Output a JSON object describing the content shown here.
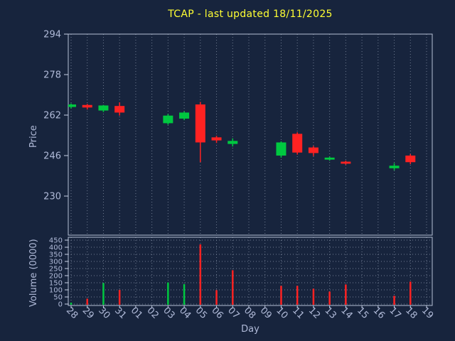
{
  "colors": {
    "background": "#17243d",
    "up": "#00c840",
    "down": "#ff2222",
    "grid": "#707c92",
    "axis": "#c8d2e6",
    "tick_text": "#b0bad8",
    "title_text": "#ffff33"
  },
  "chart_data": {
    "type": "candlestick",
    "title": "TCAP - last updated 18/11/2025",
    "xlabel": "Day",
    "legend": "none",
    "grid": "vertical-dotted",
    "price_axis": {
      "label": "Price",
      "ticks": [
        230,
        246,
        262,
        278,
        294
      ],
      "min": 214,
      "max": 294
    },
    "volume_axis": {
      "label": "Volume (0000)",
      "ticks": [
        0,
        50,
        100,
        150,
        200,
        250,
        300,
        350,
        400,
        450
      ],
      "min": 0,
      "max": 470
    },
    "days": [
      "28",
      "29",
      "30",
      "31",
      "01",
      "02",
      "03",
      "04",
      "05",
      "06",
      "07",
      "08",
      "09",
      "10",
      "11",
      "12",
      "13",
      "14",
      "15",
      "16",
      "17",
      "18",
      "19"
    ],
    "candles": [
      {
        "day": "28",
        "open": 265.2,
        "high": 266.6,
        "low": 264.6,
        "close": 266.2
      },
      {
        "day": "29",
        "open": 266.0,
        "high": 266.4,
        "low": 264.2,
        "close": 265.0
      },
      {
        "day": "30",
        "open": 263.8,
        "high": 266.0,
        "low": 263.2,
        "close": 265.8
      },
      {
        "day": "31",
        "open": 265.6,
        "high": 267.0,
        "low": 261.8,
        "close": 263.0
      },
      {
        "day": "03",
        "open": 258.8,
        "high": 262.4,
        "low": 258.2,
        "close": 261.8
      },
      {
        "day": "04",
        "open": 260.6,
        "high": 263.4,
        "low": 260.0,
        "close": 263.0
      },
      {
        "day": "05",
        "open": 266.2,
        "high": 267.2,
        "low": 243.4,
        "close": 251.2
      },
      {
        "day": "06",
        "open": 253.2,
        "high": 253.8,
        "low": 251.0,
        "close": 252.0
      },
      {
        "day": "07",
        "open": 250.6,
        "high": 252.8,
        "low": 249.6,
        "close": 251.8
      },
      {
        "day": "10",
        "open": 246.0,
        "high": 251.6,
        "low": 245.2,
        "close": 251.2
      },
      {
        "day": "11",
        "open": 254.6,
        "high": 255.2,
        "low": 246.4,
        "close": 247.2
      },
      {
        "day": "12",
        "open": 249.2,
        "high": 249.8,
        "low": 245.8,
        "close": 247.0
      },
      {
        "day": "13",
        "open": 244.4,
        "high": 245.6,
        "low": 244.0,
        "close": 245.2
      },
      {
        "day": "14",
        "open": 243.6,
        "high": 244.0,
        "low": 242.4,
        "close": 242.8
      },
      {
        "day": "17",
        "open": 241.0,
        "high": 243.0,
        "low": 240.2,
        "close": 242.0
      },
      {
        "day": "18",
        "open": 246.0,
        "high": 246.6,
        "low": 242.6,
        "close": 243.4
      }
    ],
    "volume": [
      {
        "day": "28",
        "value": 10,
        "dir": "up"
      },
      {
        "day": "29",
        "value": 38,
        "dir": "down"
      },
      {
        "day": "30",
        "value": 148,
        "dir": "up"
      },
      {
        "day": "31",
        "value": 100,
        "dir": "down"
      },
      {
        "day": "03",
        "value": 152,
        "dir": "up"
      },
      {
        "day": "04",
        "value": 140,
        "dir": "up"
      },
      {
        "day": "05",
        "value": 420,
        "dir": "down"
      },
      {
        "day": "06",
        "value": 98,
        "dir": "down"
      },
      {
        "day": "07",
        "value": 238,
        "dir": "down"
      },
      {
        "day": "10",
        "value": 128,
        "dir": "down"
      },
      {
        "day": "11",
        "value": 128,
        "dir": "down"
      },
      {
        "day": "12",
        "value": 108,
        "dir": "down"
      },
      {
        "day": "13",
        "value": 88,
        "dir": "down"
      },
      {
        "day": "14",
        "value": 138,
        "dir": "down"
      },
      {
        "day": "17",
        "value": 58,
        "dir": "down"
      },
      {
        "day": "18",
        "value": 158,
        "dir": "down"
      }
    ]
  }
}
